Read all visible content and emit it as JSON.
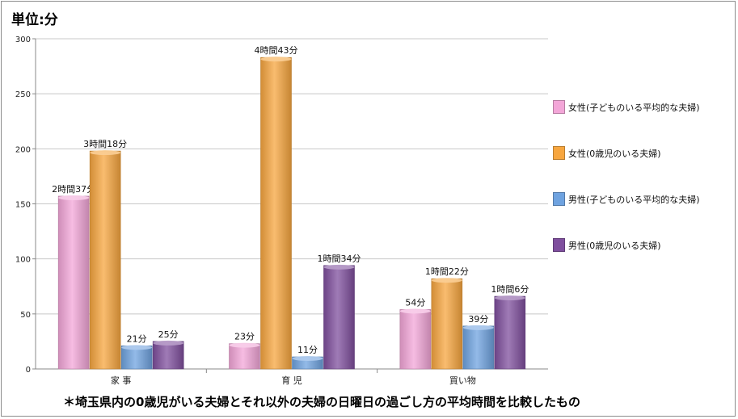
{
  "unit_label": "単位:分",
  "footnote": "＊埼玉県内の0歳児がいる夫婦とそれ以外の夫婦の日曜日の過ごし方の平均時間を比較したもの",
  "chart_data": {
    "type": "bar",
    "categories": [
      "家 事",
      "育 児",
      "買い物"
    ],
    "ylim": [
      0,
      300
    ],
    "yticks": [
      0,
      50,
      100,
      150,
      200,
      250,
      300
    ],
    "grid": true,
    "legend_position": "right",
    "series": [
      {
        "name": "女性(子どものいる平均的な夫婦)",
        "color": "#f3a6d8",
        "values": [
          157,
          23,
          54
        ],
        "labels": [
          "2時間37分",
          "23分",
          "54分"
        ]
      },
      {
        "name": "女性(0歳児のいる夫婦)",
        "color": "#f7a63f",
        "values": [
          198,
          283,
          82
        ],
        "labels": [
          "3時間18分",
          "4時間43分",
          "1時間22分"
        ]
      },
      {
        "name": "男性(子どものいる平均的な夫婦)",
        "color": "#6fa3e0",
        "values": [
          21,
          11,
          39
        ],
        "labels": [
          "21分",
          "11分",
          "39分"
        ]
      },
      {
        "name": "男性(0歳児のいる夫婦)",
        "color": "#7f4f9e",
        "values": [
          25,
          94,
          66
        ],
        "labels": [
          "25分",
          "1時間34分",
          "1時間6分"
        ]
      }
    ]
  }
}
